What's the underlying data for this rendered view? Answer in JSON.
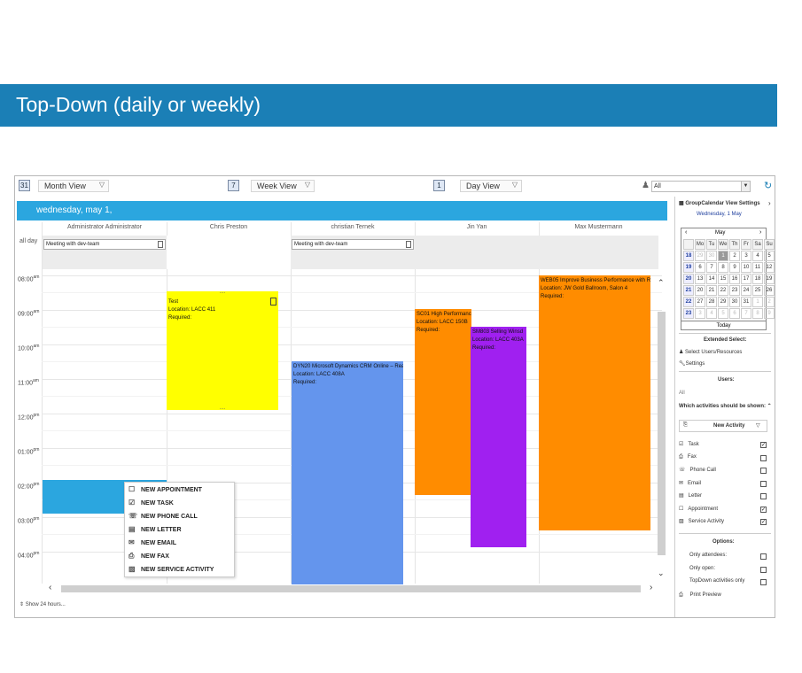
{
  "banner": {
    "title": "Top-Down (daily or weekly)"
  },
  "toolbar": {
    "month_view": {
      "icon": "31",
      "label": "Month View"
    },
    "week_view": {
      "icon": "7",
      "label": "Week View"
    },
    "day_view": {
      "icon": "1",
      "label": "Day View"
    },
    "user_filter": "All"
  },
  "day_header": "wednesday, may 1,",
  "columns": [
    "Administrator Administrator",
    "Chris Preston",
    "christian Ternek",
    "Jin Yan",
    "Max Mustermann"
  ],
  "all_day_label": "all day",
  "all_day_events": [
    {
      "title": "Meeting with dev-team"
    },
    {
      "title": "Meeting with dev-team"
    }
  ],
  "time_slots": [
    {
      "time": "08:00",
      "ampm": "am"
    },
    {
      "time": "09:00",
      "ampm": "am"
    },
    {
      "time": "10:00",
      "ampm": "am"
    },
    {
      "time": "11:00",
      "ampm": "am"
    },
    {
      "time": "12:00",
      "ampm": "pm"
    },
    {
      "time": "01:00",
      "ampm": "pm"
    },
    {
      "time": "02:00",
      "ampm": "pm"
    },
    {
      "time": "03:00",
      "ampm": "pm"
    },
    {
      "time": "04:00",
      "ampm": "pm"
    }
  ],
  "events": [
    {
      "title": "Test",
      "location": "Location: LACC 411",
      "required": "Required:",
      "color": "#ffff00"
    },
    {
      "title": "DYN20 Microsoft Dynamics CRM Online – Rea",
      "location": "Location: LACC 408A",
      "required": "Required:",
      "color": "#6495ed"
    },
    {
      "title": "SC01 High Performanc",
      "location": "Location: LACC 150B",
      "required": "Required:",
      "color": "#ff8c00"
    },
    {
      "title": "SM803 Selling Winsd",
      "location": "Location: LACC 403A",
      "required": "Required:",
      "color": "#a020f0"
    },
    {
      "title": "WEB05 Improve Business Performance with Re",
      "location": "Location: JW Gold Ballroom, Salon 4",
      "required": "Required:",
      "color": "#ff8c00"
    }
  ],
  "context_menu": [
    {
      "label": "NEW APPOINTMENT",
      "icon": "appointment-icon"
    },
    {
      "label": "NEW TASK",
      "icon": "task-icon"
    },
    {
      "label": "NEW PHONE CALL",
      "icon": "phone-icon"
    },
    {
      "label": "NEW LETTER",
      "icon": "letter-icon"
    },
    {
      "label": "NEW EMAIL",
      "icon": "email-icon"
    },
    {
      "label": "NEW FAX",
      "icon": "fax-icon"
    },
    {
      "label": "NEW SERVICE ACTIVITY",
      "icon": "service-activity-icon"
    }
  ],
  "show_24": "Show 24 hours...",
  "side_panel": {
    "title": "GroupCalendar View Settings",
    "date": "Wednesday, 1 May",
    "mini_calendar": {
      "month": "May",
      "weekdays": [
        "Mo",
        "Tu",
        "We",
        "Th",
        "Fr",
        "Sa",
        "Su"
      ],
      "weeks": [
        {
          "wk": "18",
          "days": [
            "29",
            "30",
            "1",
            "2",
            "3",
            "4",
            "5"
          ]
        },
        {
          "wk": "19",
          "days": [
            "6",
            "7",
            "8",
            "9",
            "10",
            "11",
            "12"
          ]
        },
        {
          "wk": "20",
          "days": [
            "13",
            "14",
            "15",
            "16",
            "17",
            "18",
            "19"
          ]
        },
        {
          "wk": "21",
          "days": [
            "20",
            "21",
            "22",
            "23",
            "24",
            "25",
            "26"
          ]
        },
        {
          "wk": "22",
          "days": [
            "27",
            "28",
            "29",
            "30",
            "31",
            "1",
            "2"
          ]
        },
        {
          "wk": "23",
          "days": [
            "3",
            "4",
            "5",
            "6",
            "7",
            "8",
            "9"
          ]
        }
      ],
      "today_label": "Today"
    },
    "extended_select": "Extended Select:",
    "select_users": "Select Users/Resources",
    "settings": "Settings",
    "users_label": "Users:",
    "users_value": "All",
    "activities_label": "Which activities should be shown:",
    "new_activity": "New Activity",
    "activities": [
      {
        "label": "Task",
        "checked": "✓"
      },
      {
        "label": "Fax",
        "checked": ""
      },
      {
        "label": "Phone Call",
        "checked": ""
      },
      {
        "label": "Email",
        "checked": ""
      },
      {
        "label": "Letter",
        "checked": ""
      },
      {
        "label": "Appointment",
        "checked": "✓"
      },
      {
        "label": "Service Activity",
        "checked": "✓"
      }
    ],
    "options_label": "Options:",
    "options": [
      {
        "label": "Only attendees:",
        "checked": ""
      },
      {
        "label": "Only open:",
        "checked": ""
      },
      {
        "label": "TopDown activities only",
        "checked": ""
      }
    ],
    "print_preview": "Print Preview"
  }
}
